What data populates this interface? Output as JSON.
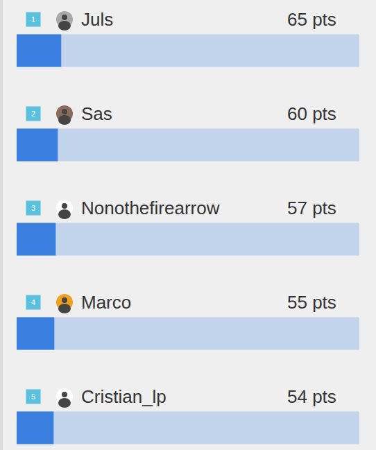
{
  "chart_data": {
    "type": "bar",
    "orientation": "horizontal",
    "categories": [
      "Juls",
      "Sas",
      "Nonothefirearrow",
      "Marco",
      "Cristian_lp"
    ],
    "ranks": [
      1,
      2,
      3,
      4,
      5
    ],
    "values": [
      65,
      60,
      57,
      55,
      54
    ],
    "value_labels": [
      "65 pts",
      "60 pts",
      "57 pts",
      "55 pts",
      "54 pts"
    ],
    "xlim": [
      0,
      500
    ],
    "tick_labels": false,
    "color": "#3a7fe0"
  }
}
